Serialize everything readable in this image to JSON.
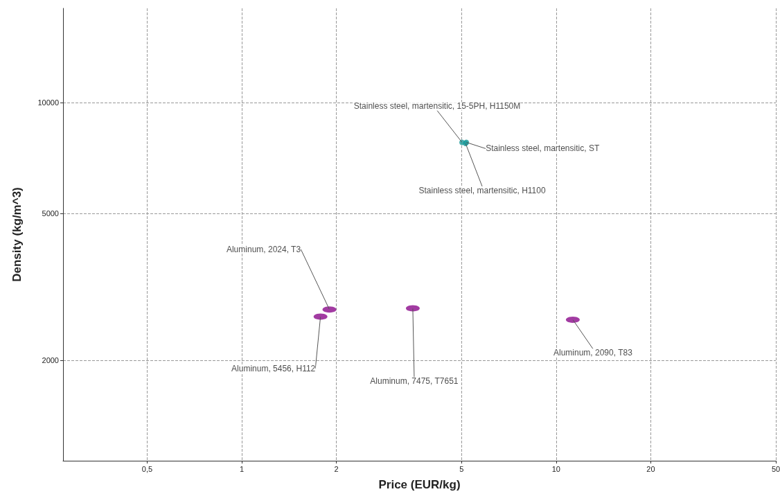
{
  "chart_data": {
    "type": "scatter",
    "xlabel": "Price (EUR/kg)",
    "ylabel": "Density (kg/m^3)",
    "log": "xy",
    "xlim": [
      0.27,
      50
    ],
    "ylim": [
      1070,
      18000
    ],
    "xticks": [
      {
        "value": 0.5,
        "label": "0,5"
      },
      1,
      2,
      5,
      10,
      20,
      50
    ],
    "yticks": [
      2000,
      5000,
      10000
    ],
    "grid": true,
    "marker": "circle",
    "series": [
      {
        "color": "#8b0a8b",
        "x": [
          1.9,
          1.78,
          3.5,
          11.3
        ],
        "values": [
          2750,
          2630,
          2770,
          2580
        ]
      },
      {
        "color": "#1a9a9a",
        "x": [
          5.02,
          5.18,
          5.15
        ],
        "values": [
          7800,
          7800,
          7750
        ]
      }
    ],
    "annotations": [
      {
        "text": "Stainless steel, martensitic, 15-5PH, H1150M",
        "x": 5.02,
        "y": 7800
      },
      {
        "text": "Stainless steel, martensitic, ST",
        "x": 5.18,
        "y": 7800
      },
      {
        "text": "Stainless steel, martensitic, H1100",
        "x": 5.15,
        "y": 7750
      },
      {
        "text": "Aluminum, 2024, T3",
        "x": 1.9,
        "y": 2750
      },
      {
        "text": "Aluminum, 5456, H112",
        "x": 1.78,
        "y": 2630
      },
      {
        "text": "Aluminum, 7475, T7651",
        "x": 3.5,
        "y": 2770
      },
      {
        "text": "Aluminum, 2090, T83",
        "x": 11.3,
        "y": 2580
      }
    ]
  }
}
